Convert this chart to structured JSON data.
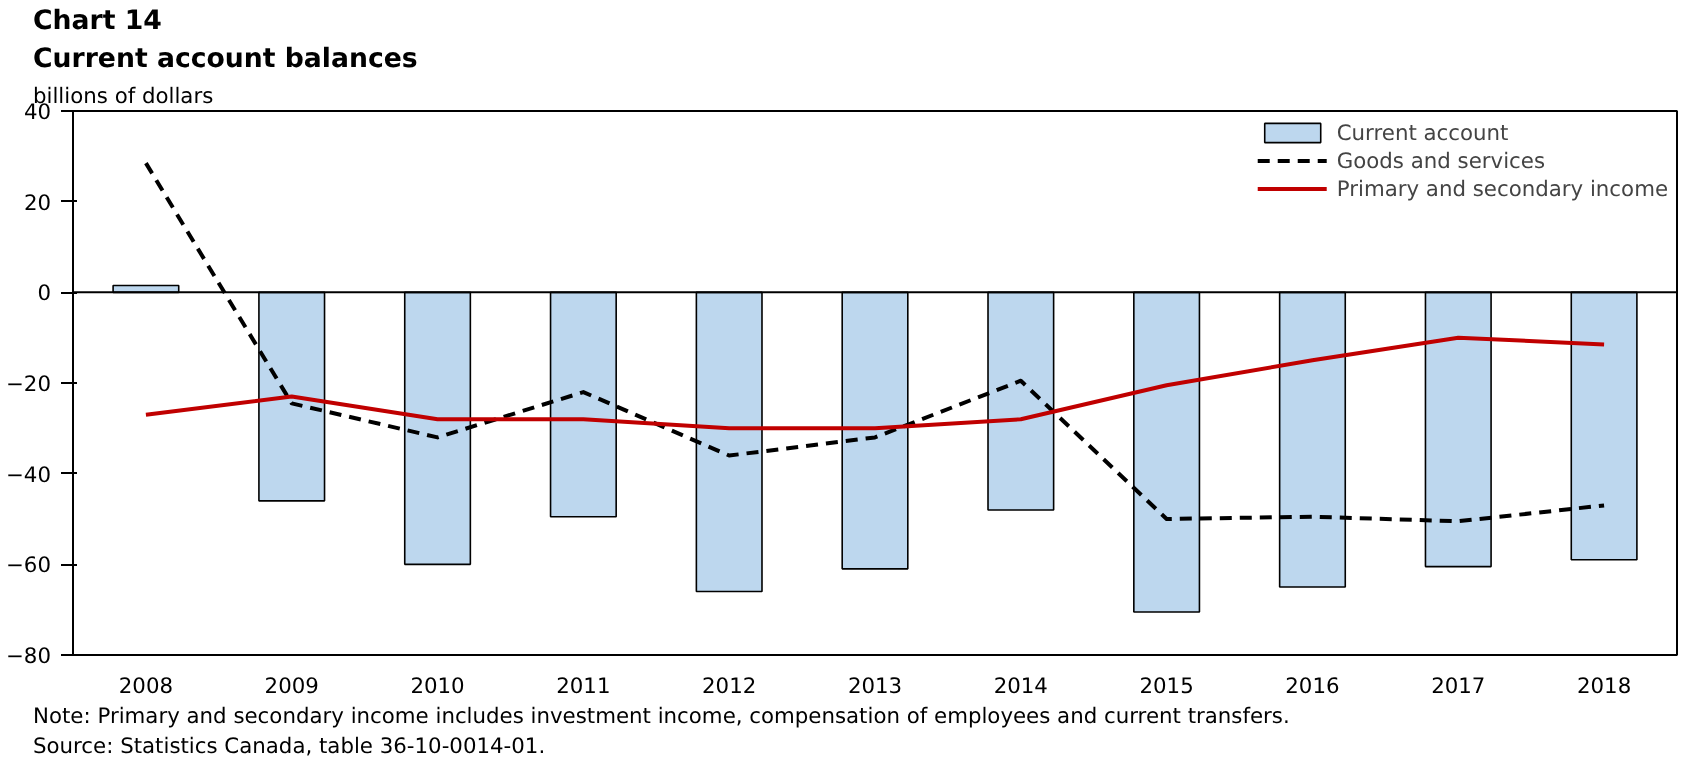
{
  "chart_data": {
    "type": "bar",
    "title": "Chart 14",
    "subtitle": "Current account balances",
    "ylabel": "billions of dollars",
    "categories": [
      "2008",
      "2009",
      "2010",
      "2011",
      "2012",
      "2013",
      "2014",
      "2015",
      "2016",
      "2017",
      "2018"
    ],
    "series": [
      {
        "name": "Current account",
        "color": "#bdd7ee",
        "values": [
          1.5,
          -46,
          -60,
          -49.5,
          -66,
          -61,
          -48,
          -70.5,
          -65,
          -60.5,
          -59
        ]
      },
      {
        "name": "Goods and services",
        "type": "line",
        "line_style": "dashed",
        "color": "#000000",
        "values": [
          28.5,
          -24.5,
          -32,
          -22,
          -36,
          -32,
          -19.5,
          -50,
          -49.5,
          -50.5,
          -47
        ]
      },
      {
        "name": "Primary and secondary income",
        "type": "line",
        "line_style": "solid",
        "color": "#c00000",
        "values": [
          -27,
          -23,
          -28,
          -28,
          -30,
          -30,
          -28,
          -20.5,
          -15,
          -10,
          -11.5
        ]
      }
    ],
    "ylim": [
      -80,
      40
    ],
    "yticks": [
      -80,
      -60,
      -40,
      -20,
      0,
      20,
      40
    ],
    "grid": false,
    "legend": "top right",
    "ref_lines": [
      {
        "axis": "y",
        "value": 0
      }
    ],
    "annotations": [
      "Note: Primary and secondary income includes investment income, compensation of employees and current transfers.",
      "Source: Statistics Canada, table 36-10-0014-01."
    ]
  }
}
